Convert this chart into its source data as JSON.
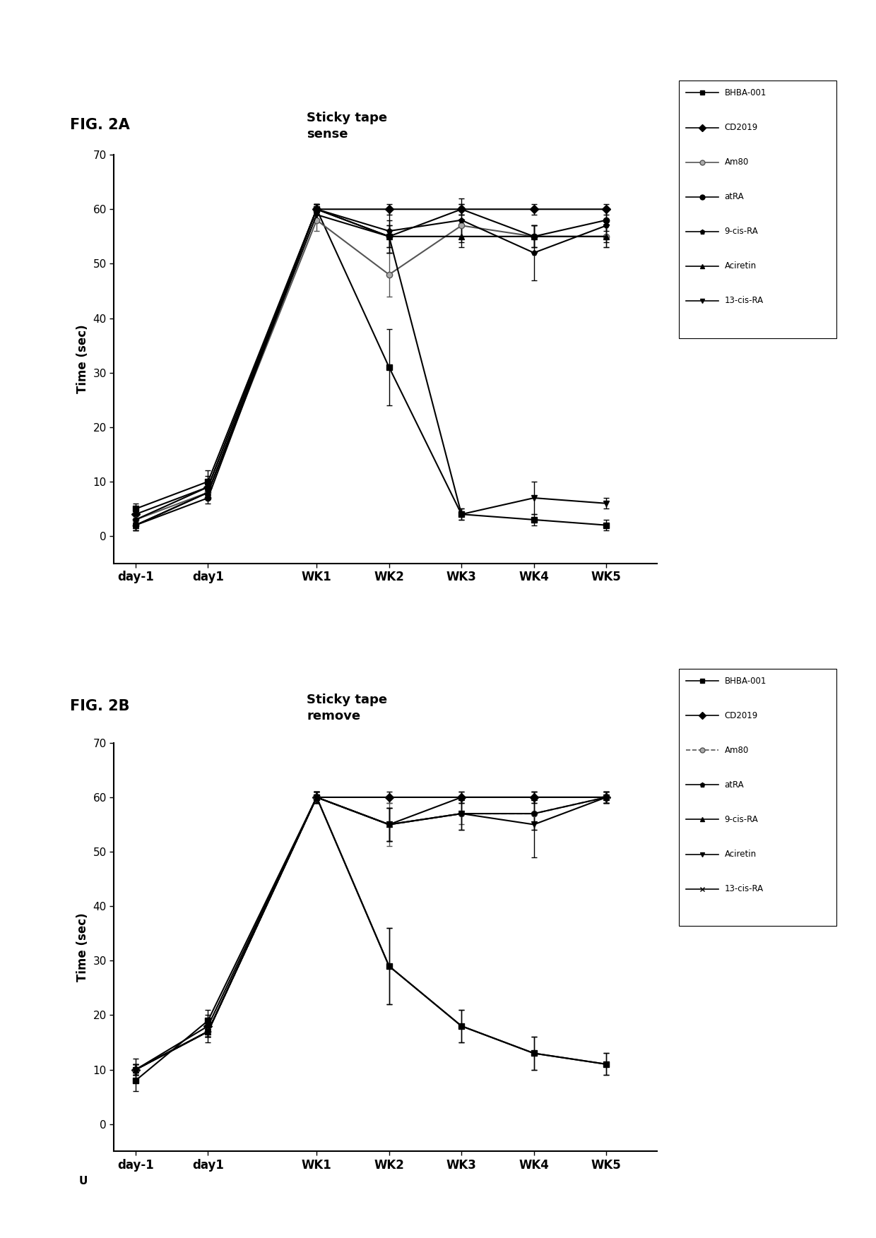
{
  "fig_title_a": "FIG. 2A",
  "fig_title_b": "FIG. 2B",
  "chart_title_a": "Sticky tape\nsense",
  "chart_title_b": "Sticky tape\nremove",
  "ylabel": "Time (sec)",
  "xtick_labels": [
    "day-1",
    "day1",
    "WK1",
    "WK2",
    "WK3",
    "WK4",
    "WK5"
  ],
  "x_positions": [
    0,
    1,
    2.5,
    3.5,
    4.5,
    5.5,
    6.5
  ],
  "ylim": [
    -5,
    70
  ],
  "yticks": [
    0,
    10,
    20,
    30,
    40,
    50,
    60,
    70
  ],
  "legend_labels_a": [
    "BHBA-001",
    "CD2019",
    "Am80",
    "atRA",
    "9-cis-RA",
    "Aciretin",
    "13-cis-RA"
  ],
  "legend_labels_b": [
    "BHBA-001",
    "CD2019",
    "Am80",
    "atRA",
    "9-cis-RA",
    "Aciretin",
    "13-cis-RA"
  ],
  "series_a": {
    "BHBA-001": {
      "y": [
        5,
        10,
        60,
        31,
        4,
        3,
        2
      ],
      "yerr": [
        1,
        2,
        1,
        7,
        1,
        1,
        1
      ],
      "marker": "s",
      "color": "#000000",
      "ls": "-",
      "mfc": "#000000"
    },
    "CD2019": {
      "y": [
        4,
        9,
        60,
        60,
        60,
        60,
        60
      ],
      "yerr": [
        1,
        2,
        1,
        1,
        1,
        1,
        1
      ],
      "marker": "D",
      "color": "#000000",
      "ls": "-",
      "mfc": "#000000"
    },
    "Am80": {
      "y": [
        3,
        8,
        58,
        48,
        57,
        55,
        55
      ],
      "yerr": [
        1,
        1,
        2,
        4,
        2,
        2,
        2
      ],
      "marker": "o",
      "color": "#555555",
      "ls": "-",
      "mfc": "#aaaaaa"
    },
    "atRA": {
      "y": [
        2,
        7,
        60,
        55,
        60,
        55,
        58
      ],
      "yerr": [
        1,
        1,
        1,
        3,
        1,
        2,
        2
      ],
      "marker": "o",
      "color": "#000000",
      "ls": "-",
      "mfc": "#000000"
    },
    "9-cis-RA": {
      "y": [
        3,
        9,
        60,
        56,
        58,
        52,
        57
      ],
      "yerr": [
        1,
        1,
        1,
        4,
        4,
        5,
        3
      ],
      "marker": "p",
      "color": "#000000",
      "ls": "-",
      "mfc": "#000000"
    },
    "Aciretin": {
      "y": [
        2,
        8,
        60,
        55,
        55,
        55,
        55
      ],
      "yerr": [
        1,
        1,
        1,
        2,
        2,
        2,
        2
      ],
      "marker": "^",
      "color": "#000000",
      "ls": "-",
      "mfc": "#000000"
    },
    "13-cis-RA": {
      "y": [
        2,
        8,
        59,
        55,
        4,
        7,
        6
      ],
      "yerr": [
        1,
        1,
        1,
        2,
        1,
        3,
        1
      ],
      "marker": "v",
      "color": "#000000",
      "ls": "-",
      "mfc": "#000000"
    }
  },
  "series_b": {
    "BHBA-001": {
      "y": [
        8,
        19,
        60,
        29,
        18,
        13,
        11
      ],
      "yerr": [
        2,
        2,
        1,
        7,
        3,
        3,
        2
      ],
      "marker": "s",
      "color": "#000000",
      "ls": "-",
      "mfc": "#000000"
    },
    "CD2019": {
      "y": [
        10,
        18,
        60,
        60,
        60,
        60,
        60
      ],
      "yerr": [
        1,
        2,
        1,
        1,
        1,
        1,
        1
      ],
      "marker": "D",
      "color": "#000000",
      "ls": "-",
      "mfc": "#000000"
    },
    "Am80": {
      "y": [
        10,
        17,
        60,
        55,
        57,
        57,
        60
      ],
      "yerr": [
        1,
        1,
        1,
        4,
        2,
        3,
        1
      ],
      "marker": "o",
      "color": "#555555",
      "ls": "--",
      "mfc": "#aaaaaa"
    },
    "atRA": {
      "y": [
        10,
        17,
        60,
        55,
        57,
        57,
        60
      ],
      "yerr": [
        1,
        1,
        1,
        3,
        3,
        3,
        1
      ],
      "marker": "p",
      "color": "#000000",
      "ls": "-",
      "mfc": "#000000"
    },
    "9-cis-RA": {
      "y": [
        10,
        17,
        60,
        55,
        60,
        60,
        60
      ],
      "yerr": [
        1,
        1,
        1,
        3,
        1,
        1,
        1
      ],
      "marker": "^",
      "color": "#000000",
      "ls": "-",
      "mfc": "#000000"
    },
    "Aciretin": {
      "y": [
        10,
        17,
        60,
        55,
        57,
        55,
        60
      ],
      "yerr": [
        1,
        1,
        1,
        3,
        3,
        6,
        1
      ],
      "marker": "v",
      "color": "#000000",
      "ls": "-",
      "mfc": "#000000"
    },
    "13-cis-RA": {
      "y": [
        10,
        17,
        60,
        29,
        18,
        13,
        11
      ],
      "yerr": [
        2,
        2,
        1,
        7,
        3,
        3,
        2
      ],
      "marker": "x",
      "color": "#000000",
      "ls": "-",
      "mfc": "#000000"
    }
  },
  "background_color": "#ffffff",
  "markersize": 6,
  "linewidth": 1.5,
  "capsize": 3,
  "elinewidth": 1.0
}
